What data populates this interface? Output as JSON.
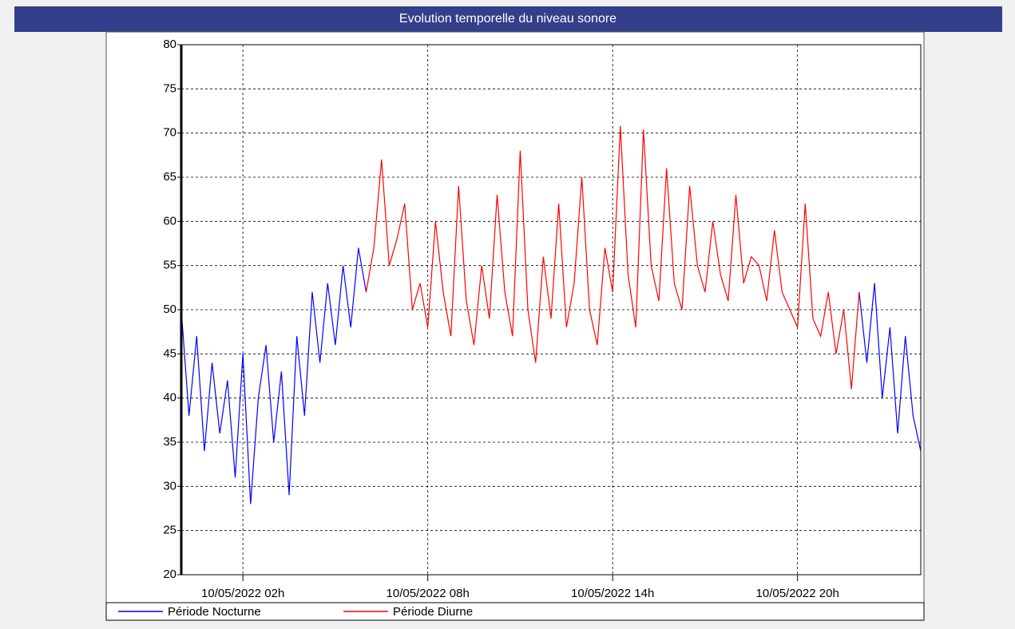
{
  "chart_data": {
    "type": "line",
    "title": "Evolution temporelle du niveau sonore",
    "x": [
      0,
      0.25,
      0.5,
      0.75,
      1,
      1.25,
      1.5,
      1.75,
      2,
      2.25,
      2.5,
      2.75,
      3,
      3.25,
      3.5,
      3.75,
      4,
      4.25,
      4.5,
      4.75,
      5,
      5.25,
      5.5,
      5.75,
      6,
      6.25,
      6.5,
      6.75,
      7,
      7.25,
      7.5,
      7.75,
      8,
      8.25,
      8.5,
      8.75,
      9,
      9.25,
      9.5,
      9.75,
      10,
      10.25,
      10.5,
      10.75,
      11,
      11.25,
      11.5,
      11.75,
      12,
      12.25,
      12.5,
      12.75,
      13,
      13.25,
      13.5,
      13.75,
      14,
      14.25,
      14.5,
      14.75,
      15,
      15.25,
      15.5,
      15.75,
      16,
      16.25,
      16.5,
      16.75,
      17,
      17.25,
      17.5,
      17.75,
      18,
      18.25,
      18.5,
      18.75,
      19,
      19.25,
      19.5,
      19.75,
      20,
      20.25,
      20.5,
      20.75,
      21,
      21.25,
      21.5,
      21.75,
      22,
      22.25,
      22.5,
      22.75,
      23,
      23.25,
      23.5,
      23.75,
      24
    ],
    "series": [
      {
        "name": "Période Nocturne",
        "color": "#0000ff",
        "values": [
          50,
          38,
          47,
          34,
          44,
          36,
          42,
          31,
          45,
          28,
          40,
          46,
          35,
          43,
          29,
          47,
          38,
          52,
          44,
          53,
          46,
          55,
          48,
          57,
          52,
          null,
          null,
          null,
          null,
          null,
          null,
          null,
          null,
          null,
          null,
          null,
          null,
          null,
          null,
          null,
          null,
          null,
          null,
          null,
          null,
          null,
          null,
          null,
          null,
          null,
          null,
          null,
          null,
          null,
          null,
          null,
          null,
          null,
          null,
          null,
          null,
          null,
          null,
          null,
          null,
          null,
          null,
          null,
          null,
          null,
          null,
          null,
          null,
          null,
          null,
          null,
          null,
          null,
          null,
          null,
          null,
          null,
          null,
          null,
          null,
          null,
          null,
          null,
          52,
          44,
          53,
          40,
          48,
          36,
          47,
          38,
          34
        ]
      },
      {
        "name": "Période Diurne",
        "color": "#ff0000",
        "values": [
          null,
          null,
          null,
          null,
          null,
          null,
          null,
          null,
          null,
          null,
          null,
          null,
          null,
          null,
          null,
          null,
          null,
          null,
          null,
          null,
          null,
          null,
          null,
          null,
          52,
          57,
          67,
          55,
          58,
          62,
          50,
          53,
          48,
          60,
          52,
          47,
          64,
          51,
          46,
          55,
          49,
          63,
          52,
          47,
          68,
          50,
          44,
          56,
          49,
          62,
          48,
          53,
          65,
          50,
          46,
          57,
          52,
          70.8,
          54,
          48,
          70.4,
          55,
          51,
          66,
          53,
          50,
          64,
          55,
          52,
          60,
          54,
          51,
          63,
          53,
          56,
          55,
          51,
          59,
          52,
          50,
          48,
          62,
          49,
          47,
          52,
          45,
          50,
          41,
          52,
          null,
          null,
          null,
          null,
          null,
          null,
          null,
          null
        ]
      }
    ],
    "xlim": [
      0,
      24
    ],
    "xticks": [
      {
        "value": 2,
        "label": "10/05/2022 02h"
      },
      {
        "value": 8,
        "label": "10/05/2022 08h"
      },
      {
        "value": 14,
        "label": "10/05/2022 14h"
      },
      {
        "value": 20,
        "label": "10/05/2022 20h"
      }
    ],
    "ylim": [
      20,
      80
    ],
    "yticks": [
      20,
      25,
      30,
      35,
      40,
      45,
      50,
      55,
      60,
      65,
      70,
      75,
      80
    ],
    "grid": true,
    "legend": "bottom"
  }
}
